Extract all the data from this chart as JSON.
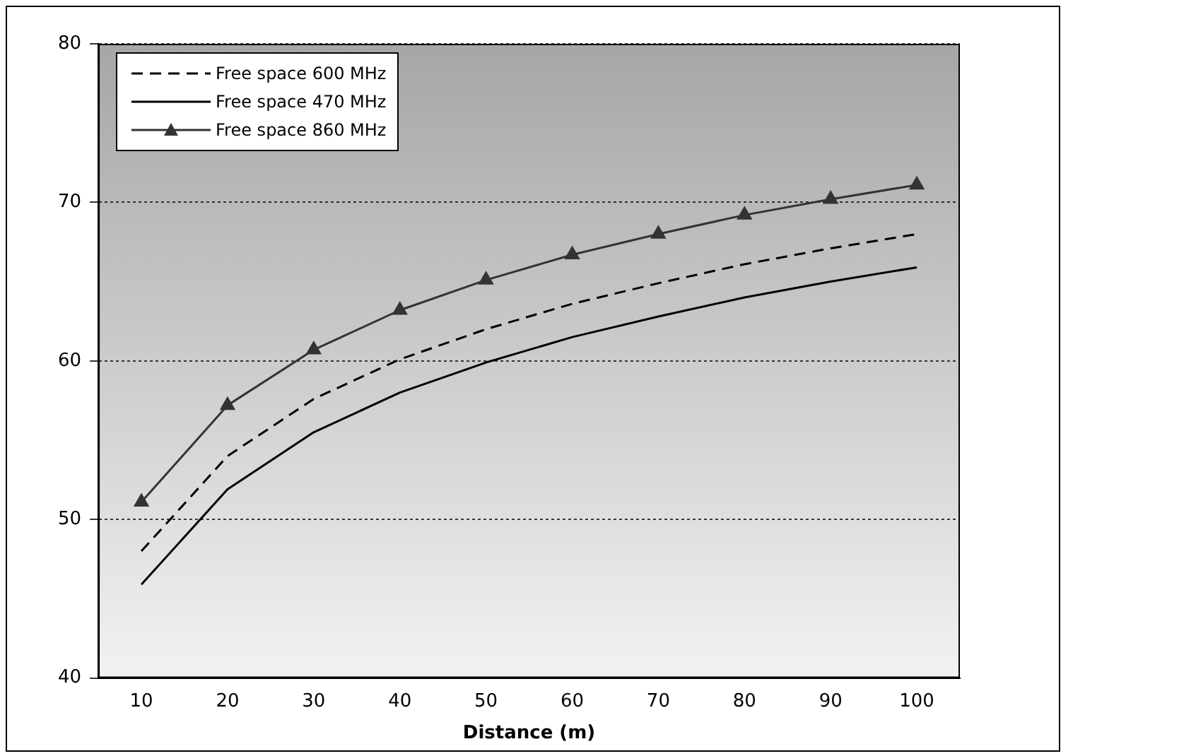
{
  "chart_data": {
    "type": "line",
    "xlabel": "Distance (m)",
    "categories": [
      "10",
      "20",
      "30",
      "40",
      "50",
      "60",
      "70",
      "80",
      "90",
      "100"
    ],
    "ylim": [
      40,
      80
    ],
    "yticks": [
      40,
      50,
      60,
      70,
      80
    ],
    "grid": "y",
    "legend": "top left",
    "series": [
      {
        "name": "Free space 600 MHz",
        "color": "#000000",
        "line_style": "dashed",
        "marker": "none",
        "values": [
          48.0,
          54.0,
          57.6,
          60.1,
          62.0,
          63.6,
          64.9,
          66.1,
          67.1,
          68.0
        ]
      },
      {
        "name": "Free space 470 MHz",
        "color": "#000000",
        "line_style": "solid",
        "marker": "none",
        "values": [
          45.9,
          51.9,
          55.5,
          58.0,
          59.9,
          61.5,
          62.8,
          64.0,
          65.0,
          65.9
        ]
      },
      {
        "name": "Free space 860 MHz",
        "color": "#333333",
        "line_style": "solid",
        "marker": "triangle",
        "values": [
          51.1,
          57.2,
          60.7,
          63.2,
          65.1,
          66.7,
          68.0,
          69.2,
          70.2,
          71.1
        ]
      }
    ]
  }
}
